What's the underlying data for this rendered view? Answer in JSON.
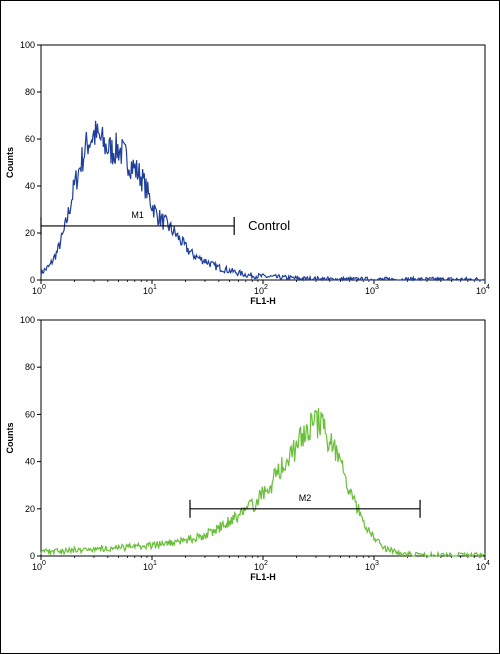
{
  "chart_data": [
    {
      "type": "line",
      "name": "top-panel",
      "xlabel": "FL1-H",
      "ylabel": "Counts",
      "xscale": "log",
      "xlim": [
        1,
        10000
      ],
      "ylim": [
        0,
        100
      ],
      "yticks": [
        "0",
        "20",
        "40",
        "60",
        "80",
        "100"
      ],
      "xticks": [
        {
          "base": "10",
          "exp": "0"
        },
        {
          "base": "10",
          "exp": "1"
        },
        {
          "base": "10",
          "exp": "2"
        },
        {
          "base": "10",
          "exp": "3"
        },
        {
          "base": "10",
          "exp": "4"
        }
      ],
      "grid": false,
      "color": "#1f3f9a",
      "series": [
        {
          "x": [
            1,
            1.2,
            1.4,
            1.6,
            1.8,
            2,
            2.3,
            2.6,
            3,
            3.4,
            3.8,
            4.3,
            5,
            5.8,
            6.8,
            8,
            9,
            10,
            11,
            12.5,
            14,
            16,
            18,
            20,
            23,
            27,
            31,
            36,
            42,
            50,
            60,
            75,
            100,
            150,
            250,
            400,
            1000,
            10000
          ],
          "y": [
            3,
            6,
            12,
            20,
            30,
            40,
            50,
            58,
            62,
            60,
            57,
            55,
            56,
            52,
            48,
            44,
            38,
            32,
            28,
            25,
            23,
            20,
            17,
            14,
            11,
            9,
            8,
            6,
            5,
            4,
            3,
            2,
            1.5,
            1,
            0.5,
            0.3,
            0.2,
            0.2
          ]
        }
      ],
      "gate": {
        "label": "M1",
        "x_start": 1,
        "x_end": 55,
        "y": 23
      },
      "annotation": "Control"
    },
    {
      "type": "line",
      "name": "bottom-panel",
      "xlabel": "FL1-H",
      "ylabel": "Counts",
      "xscale": "log",
      "xlim": [
        1,
        10000
      ],
      "ylim": [
        0,
        100
      ],
      "yticks": [
        "0",
        "20",
        "40",
        "60",
        "80",
        "100"
      ],
      "xticks": [
        {
          "base": "10",
          "exp": "0"
        },
        {
          "base": "10",
          "exp": "1"
        },
        {
          "base": "10",
          "exp": "2"
        },
        {
          "base": "10",
          "exp": "3"
        },
        {
          "base": "10",
          "exp": "4"
        }
      ],
      "grid": false,
      "color": "#6abf3a",
      "series": [
        {
          "x": [
            1,
            1.5,
            2,
            3,
            5,
            8,
            12,
            20,
            30,
            45,
            60,
            80,
            100,
            130,
            170,
            220,
            280,
            330,
            400,
            500,
            600,
            800,
            1000,
            1300,
            1700,
            2500,
            5000,
            10000
          ],
          "y": [
            2,
            2,
            2.5,
            3,
            3.5,
            4,
            5,
            6.5,
            9,
            13,
            17,
            21,
            26,
            33,
            42,
            50,
            56,
            56,
            49,
            38,
            27,
            15,
            7,
            3,
            1,
            0.5,
            0.3,
            0.3
          ]
        }
      ],
      "gate": {
        "label": "M2",
        "x_start": 22,
        "x_end": 2600,
        "y": 20
      }
    }
  ]
}
